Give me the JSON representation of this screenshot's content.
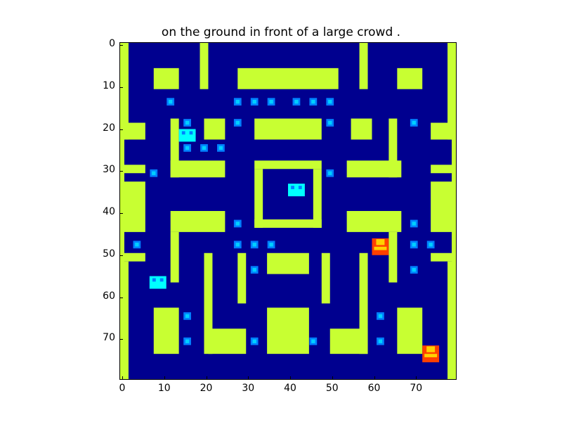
{
  "figure": {
    "title": "on the ground in front of a large crowd ."
  },
  "axes": {
    "x_ticks": [
      "0",
      "10",
      "20",
      "30",
      "40",
      "50",
      "60",
      "70"
    ],
    "y_ticks": [
      "0",
      "10",
      "20",
      "30",
      "40",
      "50",
      "60",
      "70"
    ],
    "x_range": [
      0,
      80
    ],
    "y_range": [
      0,
      80
    ],
    "y_inverted": true
  },
  "palette": {
    "background": "#00008f",
    "wall": "#c8ff32",
    "pellet": "#0080ff",
    "pellet_core": "#00d0ff",
    "ghost_frightened": "#00ffff",
    "player": "#ff4000",
    "player_highlight": "#ffd000"
  },
  "maze": {
    "walls_units": [
      [
        0,
        0,
        1,
        80
      ],
      [
        79,
        0,
        1,
        80
      ],
      [
        0,
        0,
        2,
        23
      ],
      [
        78,
        0,
        2,
        23
      ],
      [
        0,
        19,
        6,
        4
      ],
      [
        74,
        19,
        6,
        4
      ],
      [
        6,
        29,
        0,
        0
      ],
      [
        0,
        29,
        6,
        2
      ],
      [
        74,
        29,
        6,
        2
      ],
      [
        0,
        33,
        6,
        12
      ],
      [
        74,
        33,
        6,
        12
      ],
      [
        6,
        29,
        0,
        0
      ],
      [
        0,
        50,
        6,
        2
      ],
      [
        74,
        50,
        6,
        2
      ],
      [
        0,
        52,
        2,
        28
      ],
      [
        78,
        52,
        2,
        28
      ],
      [
        0,
        55,
        1,
        25
      ],
      [
        79,
        55,
        1,
        25
      ],
      [
        8,
        6,
        6,
        5
      ],
      [
        66,
        6,
        6,
        5
      ],
      [
        19,
        0,
        2,
        11
      ],
      [
        57,
        0,
        2,
        11
      ],
      [
        28,
        6,
        24,
        5
      ],
      [
        12,
        18,
        2,
        14
      ],
      [
        64,
        18,
        2,
        14
      ],
      [
        20,
        18,
        5,
        5
      ],
      [
        55,
        18,
        5,
        5
      ],
      [
        32,
        18,
        16,
        5
      ],
      [
        12,
        28,
        13,
        4
      ],
      [
        54,
        28,
        13,
        4
      ],
      [
        32,
        28,
        16,
        2
      ],
      [
        32,
        30,
        2,
        14
      ],
      [
        46,
        30,
        2,
        14
      ],
      [
        32,
        42,
        16,
        2
      ],
      [
        12,
        40,
        13,
        5
      ],
      [
        54,
        40,
        13,
        5
      ],
      [
        12,
        45,
        2,
        12
      ],
      [
        64,
        45,
        2,
        12
      ],
      [
        20,
        50,
        2,
        24
      ],
      [
        57,
        50,
        2,
        24
      ],
      [
        28,
        50,
        2,
        12
      ],
      [
        48,
        50,
        2,
        12
      ],
      [
        35,
        50,
        10,
        5
      ],
      [
        21,
        68,
        9,
        6
      ],
      [
        50,
        68,
        9,
        6
      ],
      [
        8,
        63,
        6,
        11
      ],
      [
        66,
        63,
        6,
        11
      ],
      [
        35,
        63,
        10,
        11
      ],
      [
        12,
        50,
        0,
        0
      ]
    ],
    "pellets_units": [
      [
        12,
        14
      ],
      [
        28,
        14
      ],
      [
        32,
        14
      ],
      [
        36,
        14
      ],
      [
        42,
        14
      ],
      [
        46,
        14
      ],
      [
        50,
        14
      ],
      [
        16,
        19
      ],
      [
        28,
        19
      ],
      [
        50,
        19
      ],
      [
        70,
        19
      ],
      [
        16,
        25
      ],
      [
        20,
        25
      ],
      [
        24,
        25
      ],
      [
        8,
        31
      ],
      [
        50,
        31
      ],
      [
        28,
        43
      ],
      [
        70,
        43
      ],
      [
        4,
        48
      ],
      [
        28,
        48
      ],
      [
        32,
        48
      ],
      [
        36,
        48
      ],
      [
        70,
        48
      ],
      [
        74,
        48
      ],
      [
        32,
        54
      ],
      [
        70,
        54
      ],
      [
        16,
        65
      ],
      [
        62,
        65
      ],
      [
        16,
        71
      ],
      [
        32,
        71
      ],
      [
        46,
        71
      ],
      [
        62,
        71
      ]
    ]
  },
  "sprites": {
    "ghost_1": {
      "label": "ghost",
      "x": 42,
      "y": 35
    },
    "ghost_2": {
      "label": "ghost",
      "x": 16,
      "y": 22
    },
    "ghost_3": {
      "label": "ghost",
      "x": 9,
      "y": 57
    },
    "player_1": {
      "label": "player",
      "x": 62,
      "y": 48.5
    },
    "player_2": {
      "label": "player",
      "x": 74,
      "y": 74
    }
  }
}
